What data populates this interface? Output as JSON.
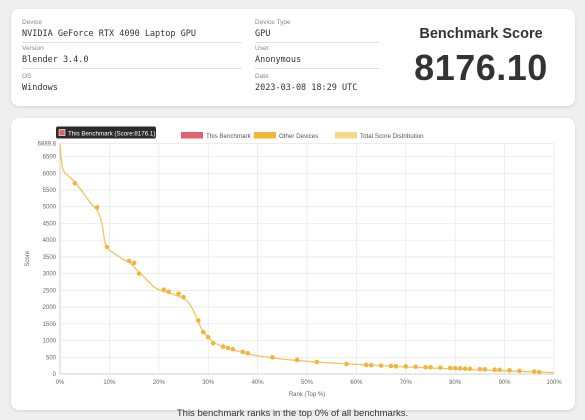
{
  "device_info": {
    "device": {
      "label": "Device",
      "value": "NVIDIA GeForce RTX 4090 Laptop GPU"
    },
    "version": {
      "label": "Version",
      "value": "Blender 3.4.0"
    },
    "os": {
      "label": "OS",
      "value": "Windows"
    },
    "device_type": {
      "label": "Device Type",
      "value": "GPU"
    },
    "user": {
      "label": "User",
      "value": "Anonymous"
    },
    "date": {
      "label": "Date",
      "value": "2023-03-08 18:29 UTC"
    }
  },
  "benchmark": {
    "title": "Benchmark Score",
    "value": "8176.10"
  },
  "chart_data": {
    "type": "line",
    "tooltip": "This Benchmark (Score:8176.1)",
    "legend": [
      {
        "name": "This Benchmark",
        "color": "#e0626a"
      },
      {
        "name": "Other Devices",
        "color": "#f0b63a"
      },
      {
        "name": "Total Score Distribution",
        "color": "#f5d98a"
      }
    ],
    "legend_position": "top",
    "xlabel": "Rank (Top %)",
    "ylabel": "Score",
    "xlim": [
      0,
      100
    ],
    "ylim": [
      0,
      6889.8
    ],
    "y_top_label": "6889.8",
    "xticks": [
      "0%",
      "10%",
      "20%",
      "30%",
      "40%",
      "50%",
      "60%",
      "70%",
      "80%",
      "90%",
      "100%"
    ],
    "yticks": [
      "0",
      "500",
      "1000",
      "1500",
      "2000",
      "2500",
      "3000",
      "3500",
      "4000",
      "4500",
      "5000",
      "5500",
      "6000",
      "6500"
    ],
    "grid": true,
    "series": [
      {
        "name": "Total Score Distribution",
        "x": [
          0,
          0.2,
          0.5,
          1,
          1.5,
          2,
          3,
          4,
          5,
          6,
          7,
          7.5,
          8,
          8.5,
          9,
          9.3,
          9.6,
          10,
          11,
          12,
          13,
          14,
          15,
          16,
          17,
          18,
          19,
          20,
          21,
          22,
          23,
          24,
          25,
          26,
          27,
          28,
          29,
          30,
          31,
          32,
          33,
          34,
          36,
          38,
          40,
          43,
          46,
          50,
          55,
          60,
          65,
          70,
          75,
          80,
          85,
          90,
          95,
          100
        ],
        "y": [
          6880,
          6500,
          6150,
          6000,
          5950,
          5880,
          5750,
          5550,
          5350,
          5150,
          4980,
          4900,
          4750,
          4500,
          4000,
          3800,
          3750,
          3700,
          3600,
          3500,
          3400,
          3350,
          3200,
          3050,
          2900,
          2750,
          2600,
          2520,
          2470,
          2420,
          2380,
          2320,
          2260,
          2150,
          1900,
          1550,
          1250,
          1100,
          950,
          880,
          820,
          760,
          680,
          600,
          540,
          480,
          430,
          380,
          330,
          290,
          250,
          210,
          180,
          150,
          120,
          95,
          70,
          40
        ]
      },
      {
        "name": "Other Devices",
        "x": [
          3,
          7.5,
          9.5,
          14,
          15,
          16,
          21,
          22,
          24,
          25,
          28,
          29,
          30,
          31,
          33,
          34,
          35,
          37,
          38,
          43,
          48,
          52,
          58,
          62,
          63,
          65,
          67,
          68,
          70,
          72,
          74,
          75,
          77,
          79,
          80,
          81,
          82,
          83,
          85,
          86,
          88,
          89,
          91,
          93,
          96,
          97
        ],
        "y": [
          5700,
          4980,
          3800,
          3380,
          3320,
          3000,
          2520,
          2460,
          2400,
          2300,
          1600,
          1250,
          1100,
          920,
          820,
          780,
          740,
          660,
          620,
          500,
          420,
          360,
          300,
          270,
          260,
          250,
          240,
          230,
          225,
          215,
          205,
          200,
          190,
          180,
          175,
          170,
          160,
          155,
          145,
          140,
          130,
          125,
          110,
          95,
          75,
          60
        ]
      }
    ]
  },
  "footer": {
    "rank_text": "This benchmark ranks in the top 0% of all benchmarks."
  }
}
